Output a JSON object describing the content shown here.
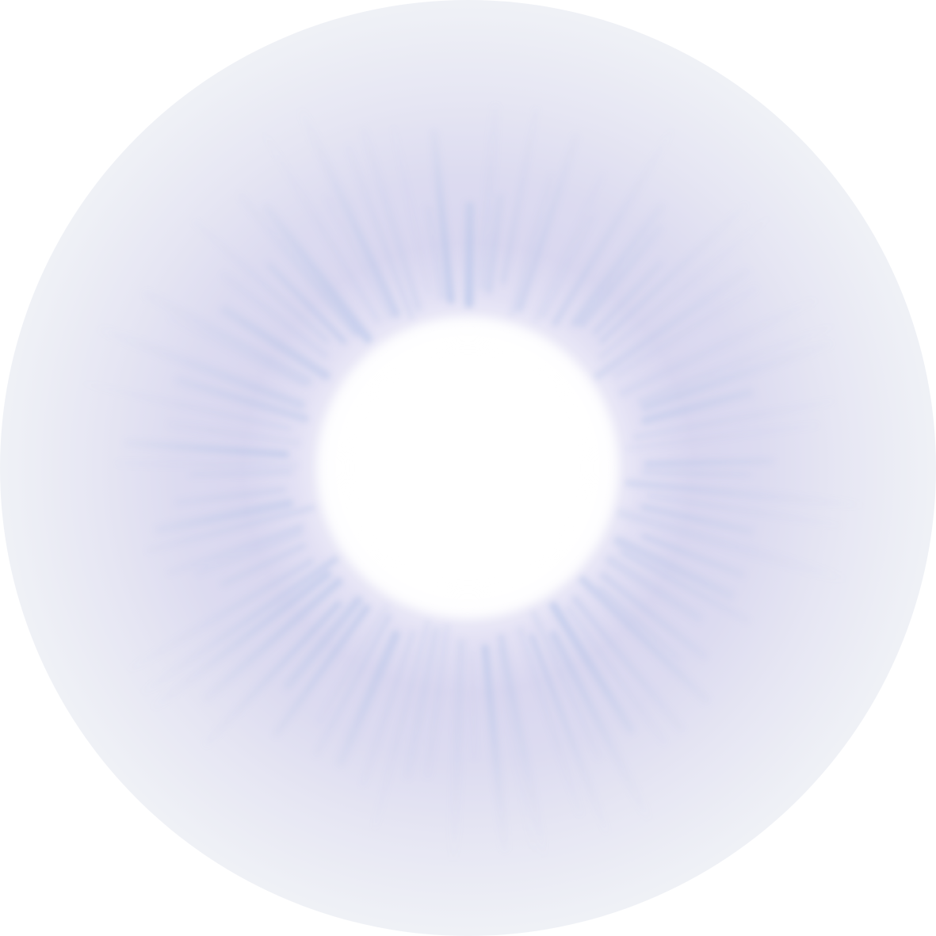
{
  "image": {
    "subject": "glow-burst",
    "colors": {
      "core": "#ffffff",
      "halo": "#d9d7ef",
      "ray": "#a9bfe6",
      "edge": "#f5f7f8"
    }
  }
}
